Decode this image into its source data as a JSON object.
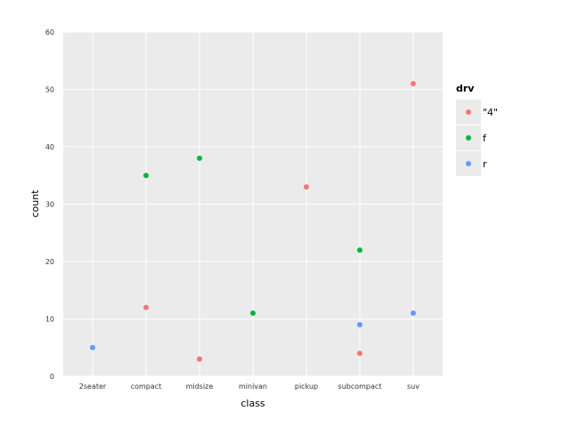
{
  "chart_data": {
    "type": "scatter",
    "xlabel": "class",
    "ylabel": "count",
    "categories": [
      "2seater",
      "compact",
      "midsize",
      "minivan",
      "pickup",
      "subcompact",
      "suv"
    ],
    "ylim": [
      0,
      60
    ],
    "yticks": [
      0,
      10,
      20,
      30,
      40,
      50,
      60
    ],
    "grid": true,
    "legend": {
      "title": "drv",
      "position": "right",
      "entries": [
        {
          "label": "\"4\"",
          "color": "#f8766d"
        },
        {
          "label": "f",
          "color": "#00ba38"
        },
        {
          "label": "r",
          "color": "#619cff"
        }
      ]
    },
    "series": [
      {
        "name": "\"4\"",
        "color": "#f8766d",
        "points": [
          {
            "x": "compact",
            "y": 12
          },
          {
            "x": "midsize",
            "y": 3
          },
          {
            "x": "pickup",
            "y": 33
          },
          {
            "x": "subcompact",
            "y": 4
          },
          {
            "x": "suv",
            "y": 51
          }
        ]
      },
      {
        "name": "f",
        "color": "#00ba38",
        "points": [
          {
            "x": "compact",
            "y": 35
          },
          {
            "x": "midsize",
            "y": 38
          },
          {
            "x": "minivan",
            "y": 11
          },
          {
            "x": "subcompact",
            "y": 22
          }
        ]
      },
      {
        "name": "r",
        "color": "#619cff",
        "points": [
          {
            "x": "2seater",
            "y": 5
          },
          {
            "x": "subcompact",
            "y": 9
          },
          {
            "x": "suv",
            "y": 11
          }
        ]
      }
    ]
  }
}
